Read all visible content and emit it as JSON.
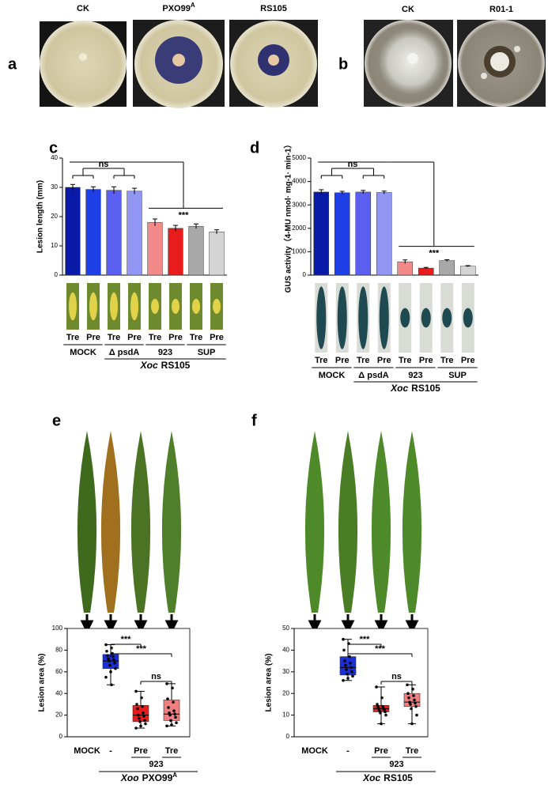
{
  "panels": [
    "a",
    "b",
    "c",
    "d",
    "e",
    "f"
  ],
  "plates_a": [
    [
      "CK"
    ],
    [
      "PXO99",
      "A"
    ],
    [
      "RS105"
    ]
  ],
  "plates_b": [
    "CK",
    "R01-1"
  ],
  "chart_data": [
    {
      "type": "bar",
      "ylabel": "Lesion length (mm)",
      "categories": [
        "Tre",
        "Pre",
        "Tre",
        "Pre",
        "Tre",
        "Pre",
        "Tre",
        "Pre"
      ],
      "values": [
        30,
        29.3,
        29,
        28.7,
        18,
        16,
        16.7,
        14.8
      ],
      "errors": [
        1,
        0.9,
        1.2,
        1,
        1.2,
        1,
        0.8,
        0.7
      ],
      "colors": [
        "#0a1aa8",
        "#1f3fe6",
        "#5a5ff0",
        "#9196f2",
        "#f28a8a",
        "#e81c1c",
        "#a8a8a8",
        "#d4d4d4"
      ],
      "ylim": [
        0,
        40
      ],
      "yticks": [
        0,
        10,
        20,
        30,
        40
      ],
      "groups": [
        "MOCK",
        "Δ psdA",
        "923",
        "SUP"
      ],
      "xlabel": [
        "Xoc",
        "RS105"
      ],
      "annotations": [
        "ns",
        "***"
      ]
    },
    {
      "type": "bar",
      "ylabel": "GUS activity（4-MU nmol· mg-1· min-1）",
      "categories": [
        "Tre",
        "Pre",
        "Tre",
        "Pre",
        "Tre",
        "Pre",
        "Tre",
        "Pre"
      ],
      "values": [
        3550,
        3520,
        3550,
        3530,
        570,
        300,
        620,
        380
      ],
      "errors": [
        100,
        60,
        70,
        60,
        80,
        30,
        40,
        25
      ],
      "colors": [
        "#0a1aa8",
        "#1f3fe6",
        "#5a5ff0",
        "#9196f2",
        "#f28a8a",
        "#e81c1c",
        "#a8a8a8",
        "#d4d4d4"
      ],
      "ylim": [
        0,
        5000
      ],
      "yticks": [
        0,
        1000,
        2000,
        3000,
        4000,
        5000
      ],
      "groups": [
        "MOCK",
        "Δ psdA",
        "923",
        "SUP"
      ],
      "xlabel": [
        "Xoc",
        "RS105"
      ],
      "annotations": [
        "ns",
        "***"
      ]
    },
    {
      "type": "box",
      "ylabel": "Lesion area (%)",
      "categories": [
        "MOCK",
        "-",
        "Pre",
        "Tre"
      ],
      "boxes": [
        {
          "min": 0,
          "q1": 0,
          "median": 0,
          "q3": 0,
          "max": 0,
          "points": []
        },
        {
          "min": 48,
          "q1": 63,
          "median": 70,
          "q3": 76,
          "max": 85,
          "points": [
            85,
            82,
            79,
            77,
            75,
            74,
            72,
            71,
            70,
            68,
            66,
            63,
            60,
            55,
            48
          ]
        },
        {
          "min": 8,
          "q1": 14,
          "median": 20,
          "q3": 29,
          "max": 42,
          "points": [
            42,
            36,
            30,
            28,
            26,
            22,
            20,
            19,
            17,
            15,
            14,
            12,
            10,
            8
          ]
        },
        {
          "min": 10,
          "q1": 15,
          "median": 21,
          "q3": 34,
          "max": 49,
          "points": [
            49,
            45,
            35,
            32,
            27,
            24,
            22,
            21,
            20,
            18,
            15,
            13,
            11,
            10
          ]
        }
      ],
      "colors": [
        "#000000",
        "#1a2fd6",
        "#e81c1c",
        "#f08080"
      ],
      "ylim": [
        0,
        100
      ],
      "yticks": [
        0,
        20,
        40,
        60,
        80,
        100
      ],
      "group": "923",
      "xlabel": [
        "Xoo",
        "PXO99",
        "A"
      ],
      "annotations": [
        "***",
        "***",
        "ns"
      ]
    },
    {
      "type": "box",
      "ylabel": "Lesion area (%)",
      "categories": [
        "MOCK",
        "-",
        "Pre",
        "Tre"
      ],
      "boxes": [
        {
          "min": 0,
          "q1": 0,
          "median": 0,
          "q3": 0,
          "max": 0,
          "points": []
        },
        {
          "min": 26,
          "q1": 28.5,
          "median": 32,
          "q3": 37,
          "max": 45,
          "points": [
            45,
            43,
            40,
            37,
            35,
            34,
            33,
            32,
            31,
            30,
            29,
            28,
            27,
            26
          ]
        },
        {
          "min": 6,
          "q1": 11.5,
          "median": 13,
          "q3": 14.5,
          "max": 23,
          "points": [
            23,
            18,
            15,
            14,
            14,
            13,
            13,
            12.5,
            12,
            11.5,
            11,
            10,
            6
          ]
        },
        {
          "min": 6,
          "q1": 14,
          "median": 16,
          "q3": 20,
          "max": 24,
          "points": [
            24,
            22,
            20,
            19,
            18,
            17,
            16,
            15.5,
            15,
            14,
            13,
            10,
            6
          ]
        }
      ],
      "colors": [
        "#000000",
        "#1a2fd6",
        "#e81c1c",
        "#f08080"
      ],
      "ylim": [
        0,
        50
      ],
      "yticks": [
        0,
        10,
        20,
        30,
        40,
        50
      ],
      "group": "923",
      "xlabel": [
        "Xoc",
        "RS105"
      ],
      "annotations": [
        "***",
        "***",
        "ns"
      ]
    }
  ]
}
